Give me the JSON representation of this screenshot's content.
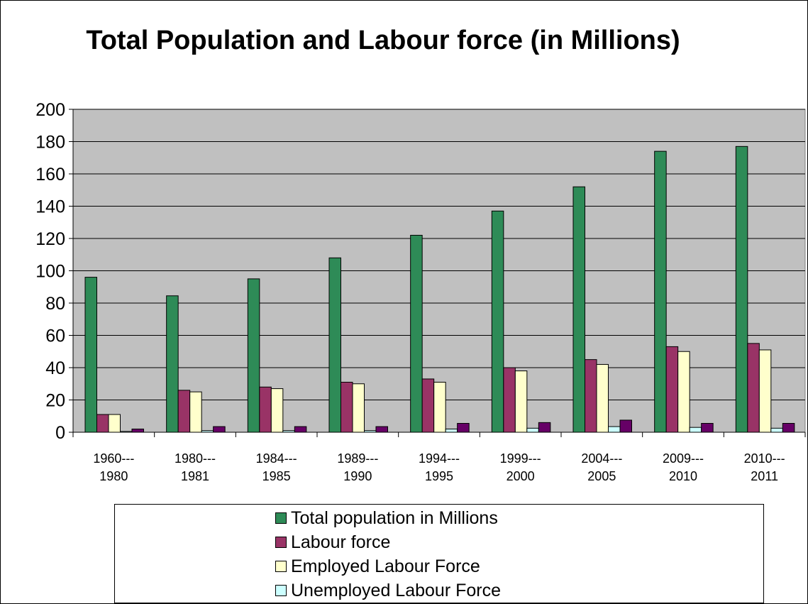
{
  "chart_data": {
    "type": "bar",
    "title": "Total Population and Labour force (in Millions)",
    "categories": [
      [
        "1960---",
        "1980"
      ],
      [
        "1980---",
        "1981"
      ],
      [
        "1984---",
        "1985"
      ],
      [
        "1989---",
        "1990"
      ],
      [
        "1994---",
        "1995"
      ],
      [
        "1999---",
        "2000"
      ],
      [
        "2004---",
        "2005"
      ],
      [
        "2009---",
        "2010"
      ],
      [
        "2010---",
        "2011"
      ]
    ],
    "series": [
      {
        "name": "Total population in Millions",
        "color": "#2e8b57",
        "values": [
          96,
          84.5,
          95,
          108,
          122,
          137,
          152,
          174,
          177
        ]
      },
      {
        "name": "Labour force",
        "color": "#993366",
        "values": [
          11,
          26,
          28,
          31,
          33,
          40,
          45,
          53,
          55
        ]
      },
      {
        "name": "Employed Labour Force",
        "color": "#ffffcc",
        "values": [
          11,
          25,
          27,
          30,
          31,
          38,
          42,
          50,
          51
        ]
      },
      {
        "name": "Unemployed Labour Force",
        "color": "#ccffff",
        "values": [
          0.5,
          1,
          1,
          1,
          2,
          2.5,
          3.5,
          3,
          2.5
        ]
      },
      {
        "name": "",
        "color": "#660066",
        "values": [
          2,
          3.5,
          3.5,
          3.5,
          5.5,
          6,
          7.5,
          5.5,
          5.5
        ]
      }
    ],
    "ylim": [
      0,
      200
    ],
    "yticks": [
      0,
      20,
      40,
      60,
      80,
      100,
      120,
      140,
      160,
      180,
      200
    ],
    "grid": true,
    "plot_background": "#c0c0c0",
    "legend_position": "bottom"
  }
}
